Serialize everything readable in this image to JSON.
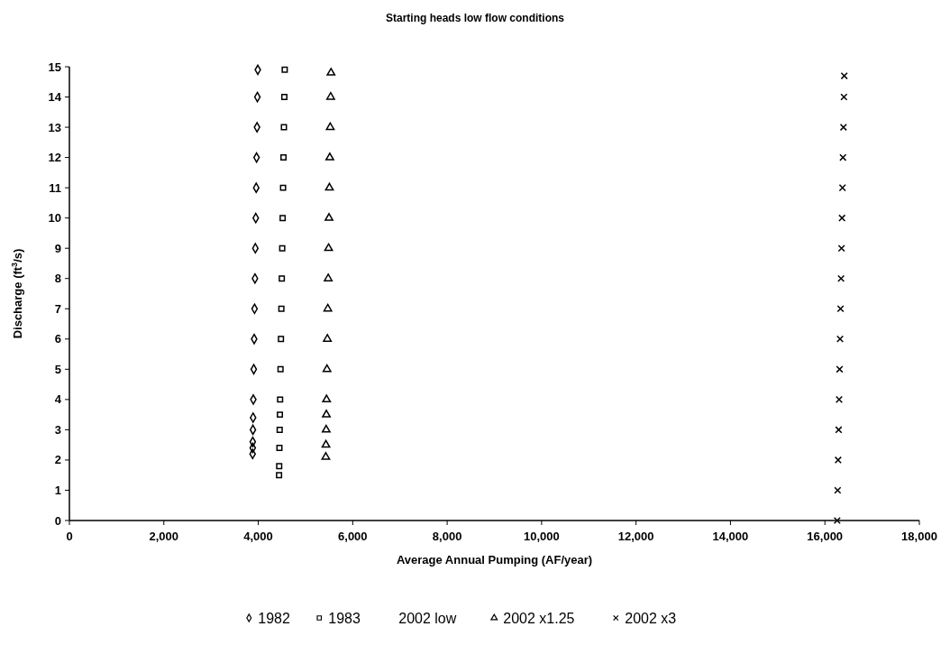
{
  "chart_data": {
    "type": "scatter",
    "title": "Starting heads low flow conditions",
    "xlabel": "Average Annual Pumping (AF/year)",
    "ylabel": "Discharge (ft$^{3}$/s)",
    "xlim": [
      0,
      18000
    ],
    "xticks": [
      {
        "value": 0,
        "label": "0"
      },
      {
        "value": 2000,
        "label": "2,000"
      },
      {
        "value": 4000,
        "label": "4,000"
      },
      {
        "value": 6000,
        "label": "6,000"
      },
      {
        "value": 8000,
        "label": "8,000"
      },
      {
        "value": 10000,
        "label": "10,000"
      },
      {
        "value": 12000,
        "label": "12,000"
      },
      {
        "value": 14000,
        "label": "14,000"
      },
      {
        "value": 16000,
        "label": "16,000"
      },
      {
        "value": 18000,
        "label": "18,000"
      }
    ],
    "ylim": [
      0,
      15
    ],
    "yticks": [
      0,
      1,
      2,
      3,
      4,
      5,
      6,
      7,
      8,
      9,
      10,
      11,
      12,
      13,
      14,
      15
    ],
    "grid": false,
    "legend": "bottom",
    "series": [
      {
        "name": "1982",
        "color": "#000000",
        "marker": "diamond",
        "x": [
          3880,
          3882,
          3883,
          3887,
          3890,
          3895,
          3904,
          3913,
          3921,
          3930,
          3938,
          3947,
          3956,
          3964,
          3973,
          3981,
          3990
        ],
        "values": [
          2.2,
          2.4,
          2.6,
          3.0,
          3.4,
          4,
          5,
          6,
          7,
          8,
          9,
          10,
          11,
          12,
          13,
          14,
          14.9
        ]
      },
      {
        "name": "1983",
        "color": "#000000",
        "marker": "square",
        "x": [
          4440,
          4443,
          4448,
          4453,
          4458,
          4462,
          4471,
          4480,
          4489,
          4498,
          4507,
          4516,
          4525,
          4534,
          4543,
          4552,
          4560
        ],
        "values": [
          1.5,
          1.8,
          2.4,
          3,
          3.5,
          4,
          5,
          6,
          7,
          8,
          9,
          10,
          11,
          12,
          13,
          14,
          14.9
        ]
      },
      {
        "name": "2002 low",
        "color": "#000000",
        "marker": "none"
      },
      {
        "name": "2002 x1.25",
        "color": "#000000",
        "marker": "triangle",
        "x": [
          5430,
          5433,
          5438,
          5442,
          5446,
          5455,
          5463,
          5472,
          5481,
          5489,
          5498,
          5507,
          5515,
          5524,
          5533,
          5540
        ],
        "values": [
          2.1,
          2.5,
          3,
          3.5,
          4,
          5,
          6,
          7,
          8,
          9,
          10,
          11,
          12,
          13,
          14,
          14.8
        ]
      },
      {
        "name": "2002 x3",
        "color": "#000000",
        "marker": "cross",
        "x": [
          16260,
          16270,
          16280,
          16291,
          16301,
          16311,
          16321,
          16331,
          16342,
          16352,
          16362,
          16372,
          16382,
          16393,
          16403,
          16410
        ],
        "values": [
          0,
          1,
          2,
          3,
          4,
          5,
          6,
          7,
          8,
          9,
          10,
          11,
          12,
          13,
          14,
          14.7
        ]
      }
    ]
  }
}
